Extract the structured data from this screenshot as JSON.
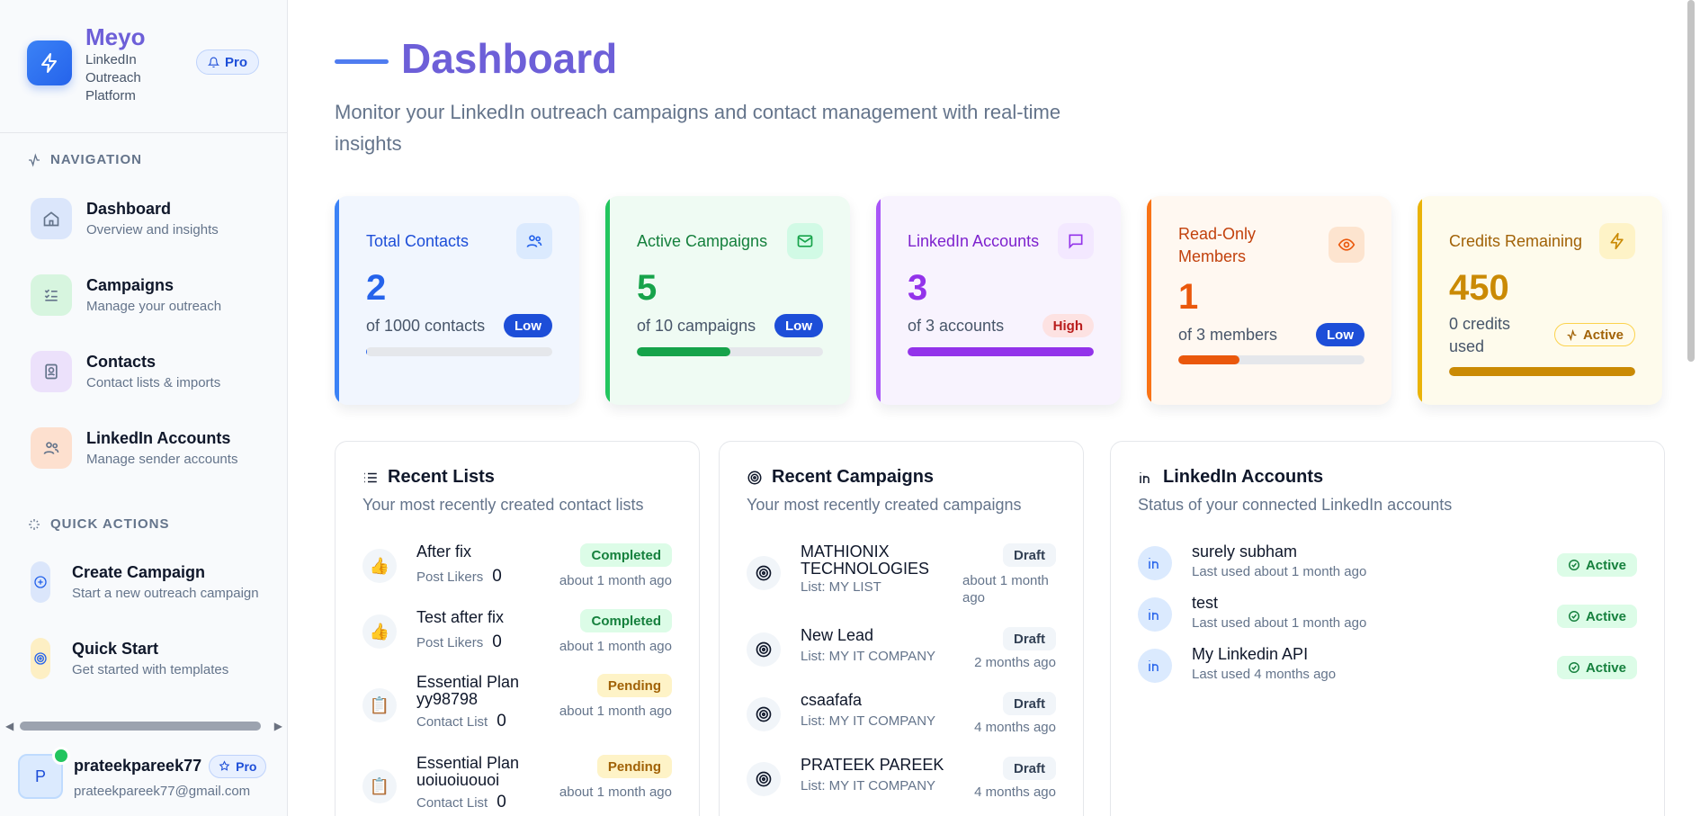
{
  "brand": {
    "name": "Meyo",
    "subtitle": "LinkedIn Outreach Platform",
    "badge": "Pro"
  },
  "navigation": {
    "label": "NAVIGATION",
    "items": [
      {
        "title": "Dashboard",
        "subtitle": "Overview and insights",
        "icon": "home-icon"
      },
      {
        "title": "Campaigns",
        "subtitle": "Manage your outreach",
        "icon": "checklist-icon"
      },
      {
        "title": "Contacts",
        "subtitle": "Contact lists & imports",
        "icon": "contact-card-icon"
      },
      {
        "title": "LinkedIn Accounts",
        "subtitle": "Manage sender accounts",
        "icon": "users-icon"
      }
    ]
  },
  "quick_actions": {
    "label": "QUICK ACTIONS",
    "items": [
      {
        "title": "Create Campaign",
        "subtitle": "Start a new outreach campaign",
        "icon": "plus-circle-icon"
      },
      {
        "title": "Quick Start",
        "subtitle": "Get started with templates",
        "icon": "target-icon"
      }
    ]
  },
  "user": {
    "initial": "P",
    "name": "prateekpareek77",
    "badge": "Pro",
    "email": "prateekpareek77@gmail.com"
  },
  "header": {
    "title": "Dashboard",
    "subtitle": "Monitor your LinkedIn outreach campaigns and contact management with real-time insights"
  },
  "stats": [
    {
      "label": "Total Contacts",
      "value": "2",
      "desc": "of 1000 contacts",
      "pill": "Low",
      "progress": 0.002,
      "color": "#2563eb"
    },
    {
      "label": "Active Campaigns",
      "value": "5",
      "desc": "of 10 campaigns",
      "pill": "Low",
      "progress": 0.5,
      "color": "#16a34a"
    },
    {
      "label": "LinkedIn Accounts",
      "value": "3",
      "desc": "of 3 accounts",
      "pill": "High",
      "progress": 1.0,
      "color": "#9333ea"
    },
    {
      "label": "Read-Only Members",
      "value": "1",
      "desc": "of 3 members",
      "pill": "Low",
      "progress": 0.33,
      "color": "#ea580c"
    },
    {
      "label": "Credits Remaining",
      "value": "450",
      "desc": "0 credits used",
      "pill": "Active",
      "progress": 1.0,
      "color": "#ca8a04"
    }
  ],
  "recent_lists": {
    "title": "Recent Lists",
    "subtitle": "Your most recently created contact lists",
    "items": [
      {
        "name": "After fix",
        "type": "Post Likers",
        "count": "0",
        "status": "Completed",
        "time": "about 1 month ago",
        "icon": "thumbs-up-icon"
      },
      {
        "name": "Test after fix",
        "type": "Post Likers",
        "count": "0",
        "status": "Completed",
        "time": "about 1 month ago",
        "icon": "thumbs-up-icon"
      },
      {
        "name": "Essential Plan yy98798",
        "type": "Contact List",
        "count": "0",
        "status": "Pending",
        "time": "about 1 month ago",
        "icon": "clipboard-icon"
      },
      {
        "name": "Essential Plan uoiuoiuouoi",
        "type": "Contact List",
        "count": "0",
        "status": "Pending",
        "time": "about 1 month ago",
        "icon": "clipboard-icon"
      }
    ]
  },
  "recent_campaigns": {
    "title": "Recent Campaigns",
    "subtitle": "Your most recently created campaigns",
    "items": [
      {
        "name": "MATHIONIX TECHNOLOGIES",
        "list": "List: MY LIST",
        "status": "Draft",
        "time": "about 1 month ago"
      },
      {
        "name": "New Lead",
        "list": "List: MY IT COMPANY",
        "status": "Draft",
        "time": "2 months ago"
      },
      {
        "name": "csaafafa",
        "list": "List: MY IT COMPANY",
        "status": "Draft",
        "time": "4 months ago"
      },
      {
        "name": "PRATEEK PAREEK",
        "list": "List: MY IT COMPANY",
        "status": "Draft",
        "time": "4 months ago"
      }
    ]
  },
  "linkedin_accounts": {
    "title": "LinkedIn Accounts",
    "subtitle": "Status of your connected LinkedIn accounts",
    "items": [
      {
        "name": "surely subham",
        "last_used": "Last used about 1 month ago",
        "status": "Active"
      },
      {
        "name": "test",
        "last_used": "Last used about 1 month ago",
        "status": "Active"
      },
      {
        "name": "My Linkedin API",
        "last_used": "Last used 4 months ago",
        "status": "Active"
      }
    ]
  }
}
